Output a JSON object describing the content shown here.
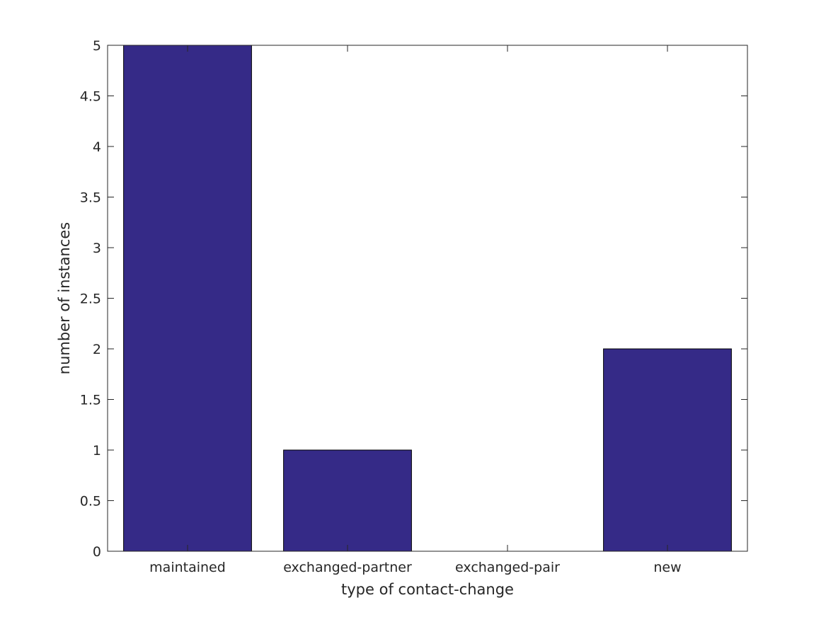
{
  "chart_data": {
    "type": "bar",
    "title": "",
    "xlabel": "type of contact-change",
    "ylabel": "number of instances",
    "categories": [
      "maintained",
      "exchanged-partner",
      "exchanged-pair",
      "new"
    ],
    "values": [
      5,
      1,
      0,
      2
    ],
    "ylim": [
      0,
      5
    ],
    "yticks": [
      "0",
      "0.5",
      "1",
      "1.5",
      "2",
      "2.5",
      "3",
      "3.5",
      "4",
      "4.5",
      "5"
    ],
    "grid": false,
    "legend": "none",
    "colors": {
      "bar_fill": "#352a87",
      "bar_edge": "#000000",
      "axis": "#262626",
      "background": "#ffffff"
    }
  }
}
